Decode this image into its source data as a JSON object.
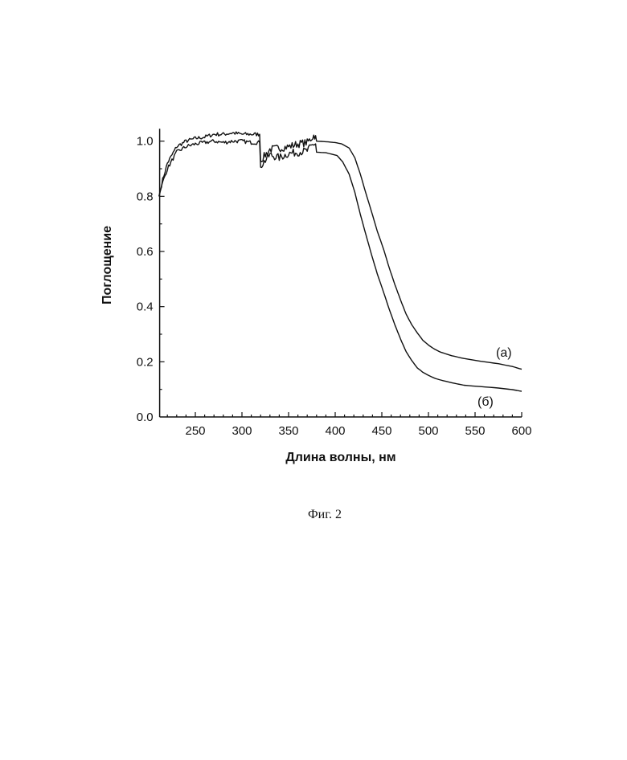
{
  "chart_data": {
    "type": "line",
    "title": "",
    "xlabel": "Длина волны, нм",
    "ylabel": "Поглощение",
    "xlim": [
      210,
      600
    ],
    "ylim": [
      0,
      1.045
    ],
    "xticks": [
      250,
      300,
      350,
      400,
      450,
      500,
      550,
      600
    ],
    "xtick_labels": [
      "250",
      "300",
      "350",
      "400",
      "450",
      "500",
      "550",
      "600"
    ],
    "yticks": [
      0,
      0.2,
      0.4,
      0.6,
      0.8,
      1.0
    ],
    "ytick_labels": [
      "0.0",
      "0.2",
      "0.4",
      "0.6",
      "0.8",
      "1.0"
    ],
    "grid": false,
    "series": [
      {
        "name": "(a)",
        "x": [
          211,
          215,
          220,
          225,
          230,
          240,
          250,
          260,
          270,
          280,
          290,
          300,
          310,
          319,
          320,
          325,
          330,
          340,
          350,
          360,
          370,
          377,
          379,
          380,
          390,
          400,
          407,
          415,
          421,
          427,
          433,
          439,
          445,
          452,
          458,
          464,
          470,
          476,
          482,
          488,
          494,
          501,
          507,
          513,
          525,
          538,
          556,
          575,
          590,
          600
        ],
        "y": [
          0.8,
          0.86,
          0.92,
          0.95,
          0.98,
          1.0,
          1.01,
          1.015,
          1.025,
          1.025,
          1.03,
          1.025,
          1.025,
          1.025,
          0.93,
          0.95,
          0.97,
          0.975,
          0.98,
          0.99,
          0.995,
          1.02,
          1.02,
          1.0,
          0.998,
          0.995,
          0.99,
          0.975,
          0.94,
          0.88,
          0.81,
          0.744,
          0.675,
          0.607,
          0.54,
          0.48,
          0.425,
          0.373,
          0.335,
          0.305,
          0.278,
          0.258,
          0.245,
          0.235,
          0.222,
          0.212,
          0.202,
          0.193,
          0.183,
          0.173
        ]
      },
      {
        "name": "(б)",
        "x": [
          211,
          215,
          220,
          225,
          230,
          240,
          250,
          260,
          270,
          280,
          290,
          300,
          310,
          319,
          320,
          325,
          330,
          340,
          350,
          360,
          370,
          377,
          379,
          380,
          390,
          402,
          408,
          415,
          421,
          427,
          433,
          439,
          445,
          452,
          458,
          464,
          470,
          476,
          482,
          488,
          494,
          501,
          507,
          513,
          525,
          538,
          556,
          575,
          590,
          600
        ],
        "y": [
          0.8,
          0.85,
          0.9,
          0.93,
          0.96,
          0.98,
          0.99,
          0.995,
          1.0,
          0.995,
          1.0,
          1.0,
          0.995,
          0.995,
          0.91,
          0.93,
          0.95,
          0.94,
          0.955,
          0.96,
          0.965,
          0.99,
          0.99,
          0.96,
          0.958,
          0.948,
          0.925,
          0.88,
          0.815,
          0.734,
          0.66,
          0.588,
          0.52,
          0.451,
          0.39,
          0.334,
          0.283,
          0.237,
          0.205,
          0.178,
          0.162,
          0.149,
          0.14,
          0.134,
          0.124,
          0.115,
          0.11,
          0.105,
          0.099,
          0.093
        ]
      }
    ],
    "annotations": [
      "(a)",
      "(б)"
    ]
  },
  "caption": "Фиг. 2"
}
